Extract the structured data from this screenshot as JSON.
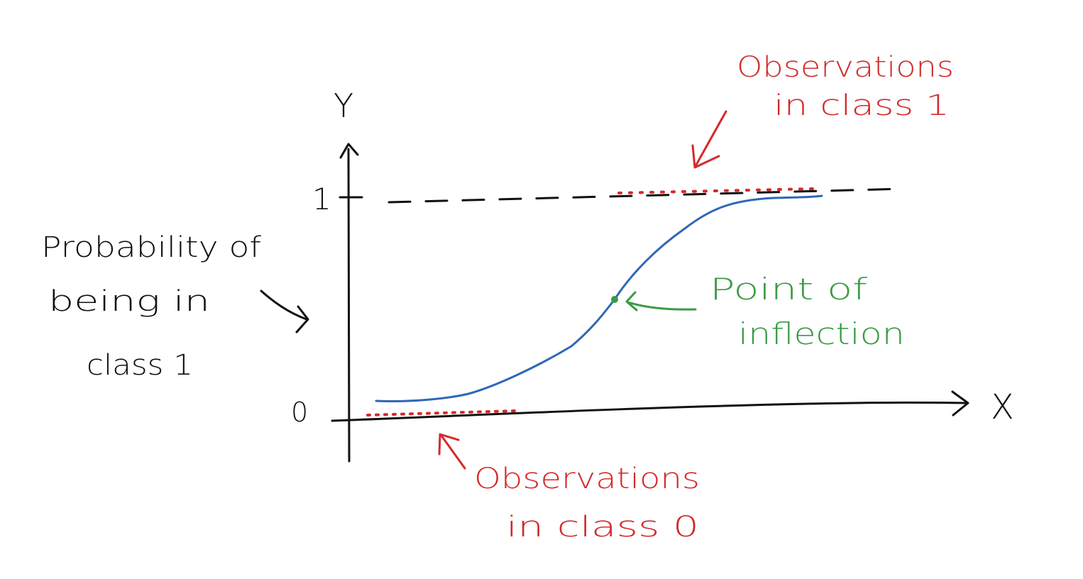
{
  "axes": {
    "y_label": "Y",
    "x_label": "X",
    "y_tick_top": "1",
    "y_tick_bottom": "0"
  },
  "annotations": {
    "probability_lines": [
      "Probability of",
      "being in",
      "class 1"
    ],
    "class1_lines": [
      "Observations",
      "in class 1"
    ],
    "class0_lines": [
      "Observations",
      "in class 0"
    ],
    "inflection_lines": [
      "Point of",
      "inflection"
    ]
  },
  "colors": {
    "axes": "#111111",
    "curve": "#2f67b8",
    "observations": "#d42a2a",
    "inflection": "#3a9a45"
  }
}
